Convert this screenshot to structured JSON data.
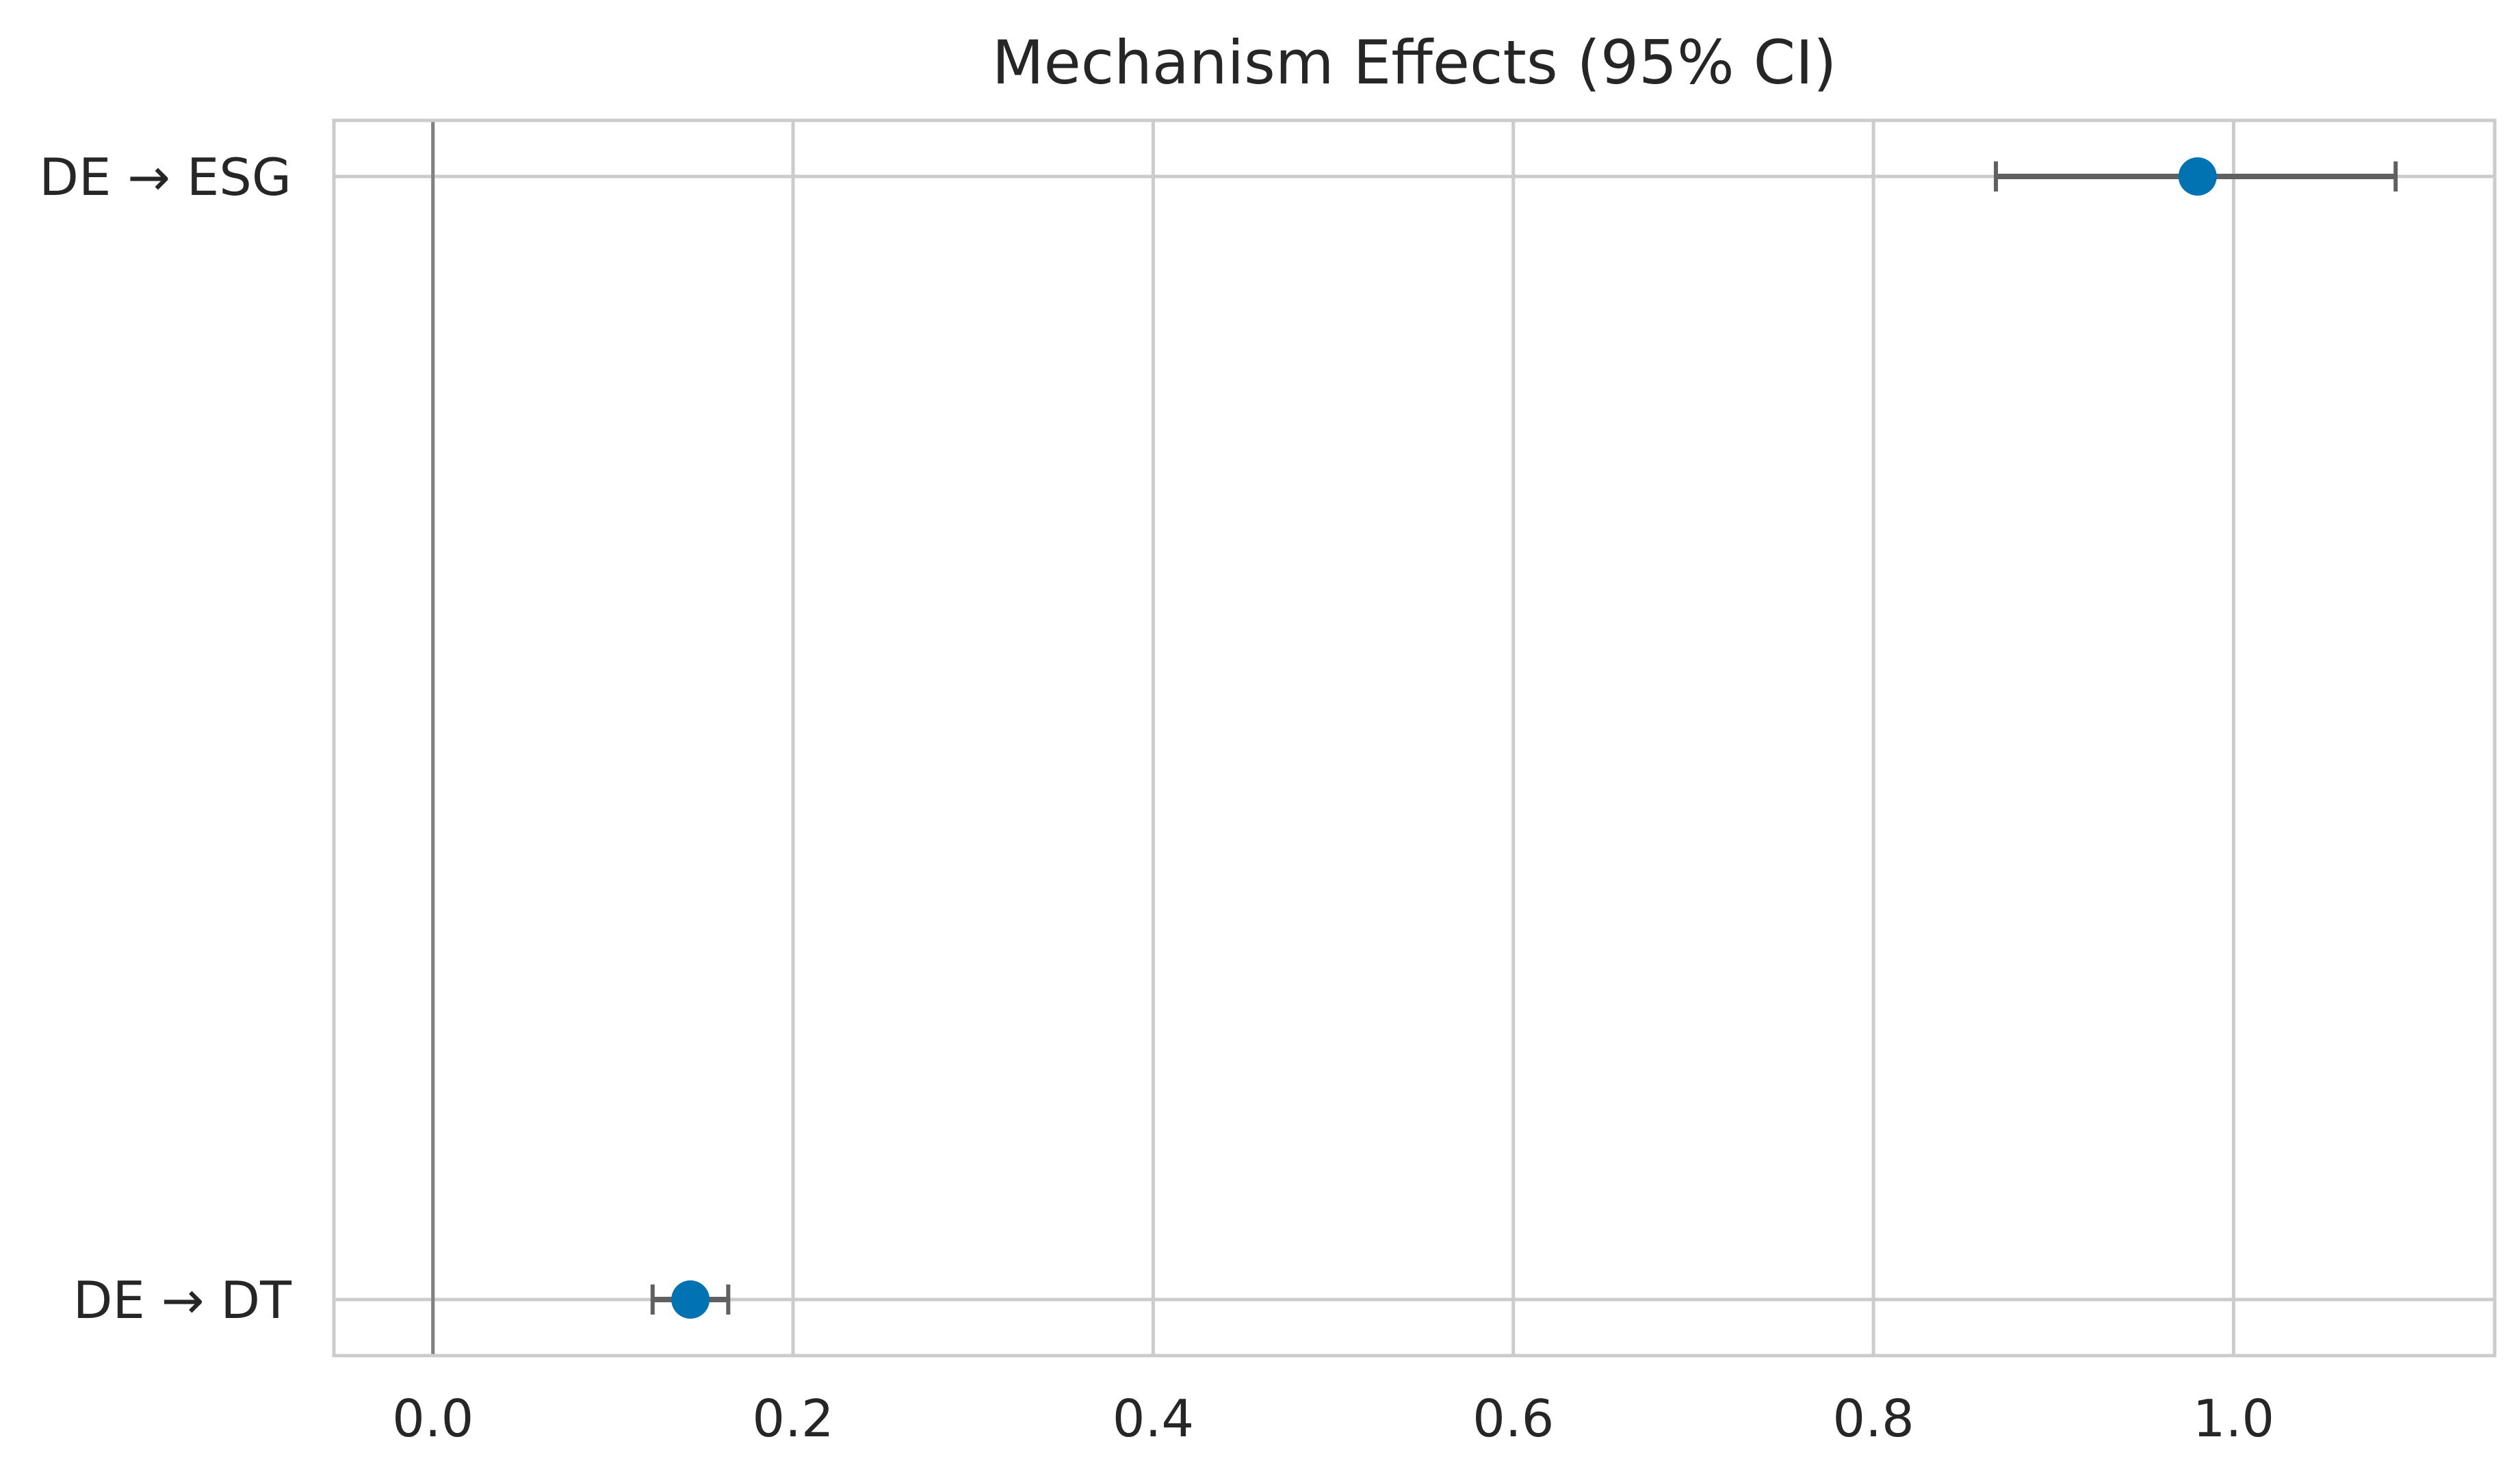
{
  "chart_data": {
    "type": "scatter",
    "title": "Mechanism Effects (95% CI)",
    "xlabel": "",
    "ylabel": "",
    "xlim": [
      -0.055,
      1.145
    ],
    "x_ticks": [
      0.0,
      0.2,
      0.4,
      0.6,
      0.8,
      1.0
    ],
    "x_tick_labels": [
      "0.0",
      "0.2",
      "0.4",
      "0.6",
      "0.8",
      "1.0"
    ],
    "categories": [
      "DE → ESG",
      "DE → DT"
    ],
    "points": [
      {
        "label": "DE → ESG",
        "estimate": 0.98,
        "ci_low": 0.868,
        "ci_high": 1.09
      },
      {
        "label": "DE → DT",
        "estimate": 0.143,
        "ci_low": 0.122,
        "ci_high": 0.164
      }
    ],
    "reference_line_x": 0.0,
    "grid": true,
    "legend": "none",
    "colors": {
      "point": "#0173b2",
      "errorbar": "#606060",
      "grid": "#cccccc",
      "reference": "#808080",
      "frame": "#cccccc"
    }
  }
}
